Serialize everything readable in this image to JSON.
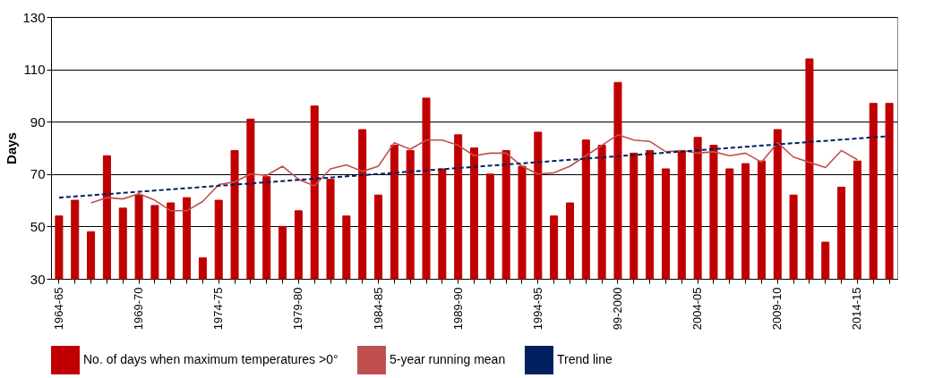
{
  "chart_data": {
    "type": "bar",
    "ylabel": "Days",
    "ylim": [
      30,
      130
    ],
    "yticks": [
      30,
      50,
      70,
      90,
      110,
      130
    ],
    "grid": "y",
    "legend": "bottom",
    "categories": [
      "1964-65",
      null,
      null,
      null,
      null,
      "1969-70",
      null,
      null,
      null,
      null,
      "1974-75",
      null,
      null,
      null,
      null,
      "1979-80",
      null,
      null,
      null,
      null,
      "1984-85",
      null,
      null,
      null,
      null,
      "1989-90",
      null,
      null,
      null,
      null,
      "1994-95",
      null,
      null,
      null,
      null,
      "99-2000",
      null,
      null,
      null,
      null,
      "2004-05",
      null,
      null,
      null,
      null,
      "2009-10",
      null,
      null,
      null,
      null,
      "2014-15",
      null,
      null
    ],
    "series": [
      {
        "name": "No. of days when maximum temperatures >0°",
        "color": "#c00000",
        "values": [
          54,
          60,
          48,
          77,
          57,
          62,
          58,
          59,
          61,
          38,
          60,
          79,
          91,
          69,
          50,
          56,
          96,
          68,
          54,
          87,
          62,
          81,
          79,
          99,
          72,
          85,
          80,
          70,
          79,
          73,
          86,
          54,
          59,
          83,
          81,
          105,
          78,
          79,
          72,
          79,
          84,
          81,
          72,
          74,
          75,
          87,
          62,
          114,
          44,
          65,
          75,
          97,
          97
        ]
      },
      {
        "name": "5-year running mean",
        "type": "line",
        "color": "#c0504d",
        "line_style": "solid",
        "values": [
          null,
          null,
          59,
          61,
          60.5,
          62.5,
          60,
          56,
          56,
          59.5,
          66,
          67,
          70,
          69.5,
          73,
          68,
          65.5,
          72,
          73.5,
          71,
          73,
          82,
          79.5,
          83,
          83,
          81,
          77,
          78,
          78,
          73,
          70,
          70.5,
          73,
          77,
          81,
          85,
          83,
          82.5,
          78.5,
          79,
          78,
          78.5,
          77,
          78,
          74.5,
          82,
          76.5,
          74.5,
          72.5,
          79,
          75.5,
          null,
          null
        ]
      },
      {
        "name": "Trend line",
        "type": "line",
        "color": "#002060",
        "line_style": "dashed",
        "values": [
          61,
          null,
          null,
          null,
          null,
          null,
          null,
          null,
          null,
          null,
          null,
          null,
          null,
          null,
          null,
          null,
          null,
          null,
          null,
          null,
          null,
          null,
          null,
          null,
          null,
          null,
          null,
          null,
          null,
          null,
          null,
          null,
          null,
          null,
          null,
          null,
          null,
          null,
          null,
          null,
          null,
          null,
          null,
          null,
          null,
          null,
          null,
          null,
          null,
          null,
          null,
          null,
          84.5
        ]
      }
    ]
  }
}
